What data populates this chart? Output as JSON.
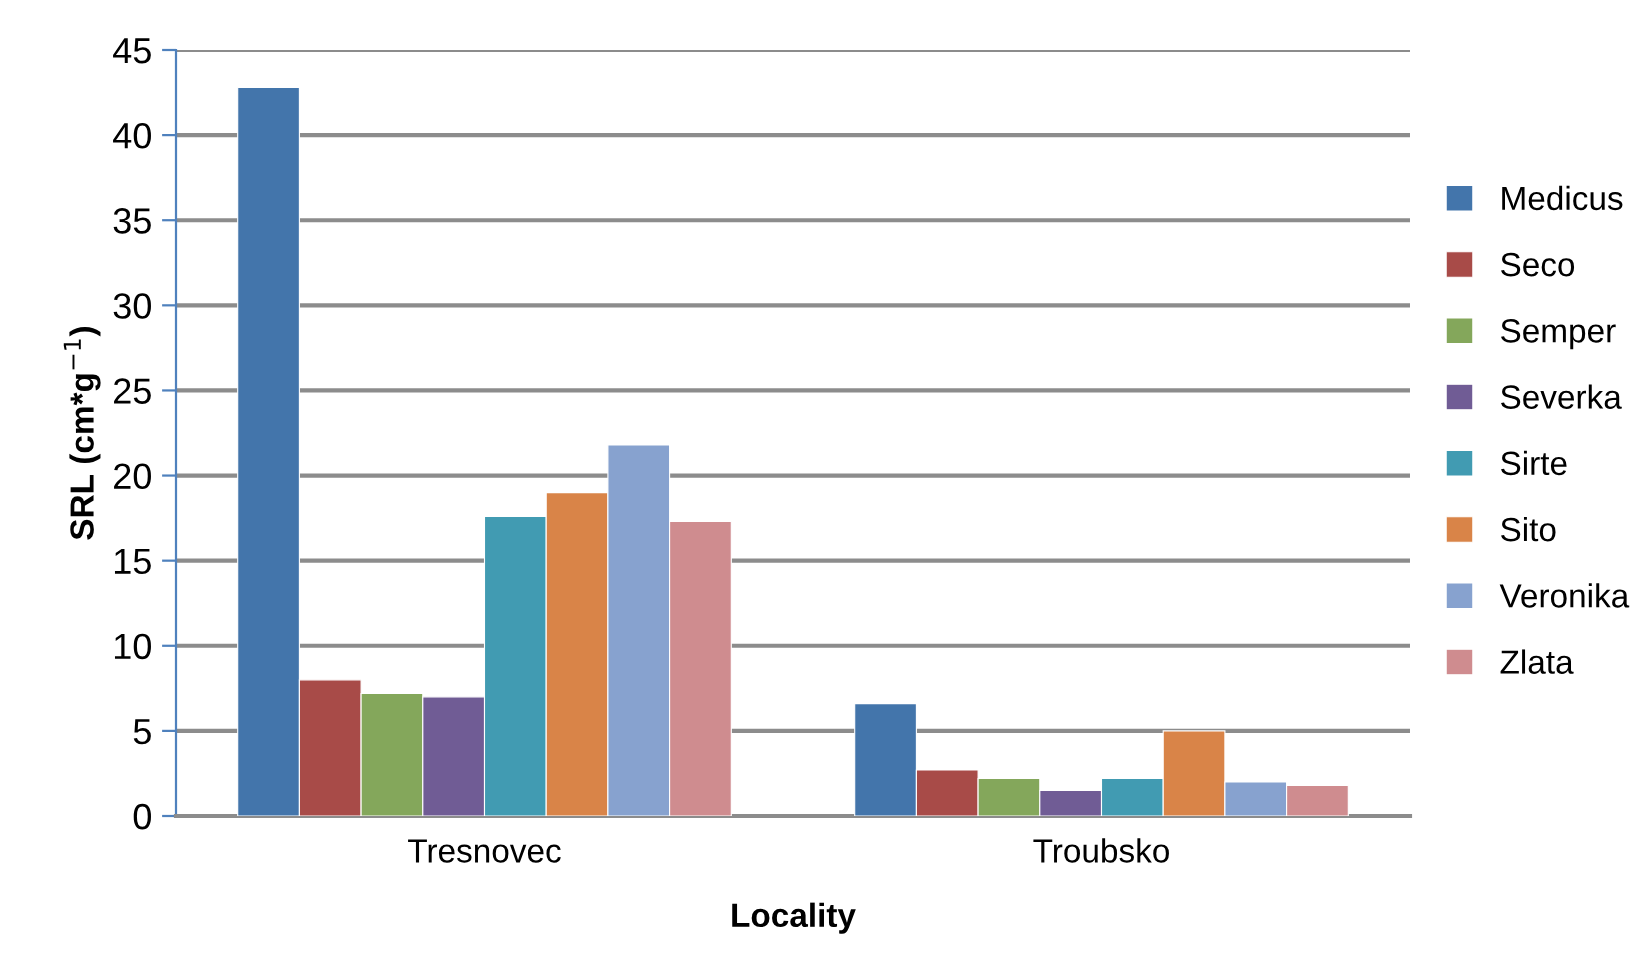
{
  "chart_data": {
    "type": "bar",
    "xlabel": "Locality",
    "ylabel": "SRL (cm*g$^{−1}$)",
    "categories": [
      "Tresnovec",
      "Troubsko"
    ],
    "series": [
      {
        "name": "Medicus",
        "color": "#4375ab",
        "values": [
          42.8,
          6.6
        ]
      },
      {
        "name": "Seco",
        "color": "#a84b48",
        "values": [
          8.0,
          2.7
        ]
      },
      {
        "name": "Semper",
        "color": "#84a75b",
        "values": [
          7.2,
          2.2
        ]
      },
      {
        "name": "Severka",
        "color": "#705c95",
        "values": [
          7.0,
          1.5
        ]
      },
      {
        "name": "Sirte",
        "color": "#419bb2",
        "values": [
          17.6,
          2.2
        ]
      },
      {
        "name": "Sito",
        "color": "#d98448",
        "values": [
          19.0,
          5.0
        ]
      },
      {
        "name": "Veronika",
        "color": "#87a2cf",
        "values": [
          21.8,
          2.0
        ]
      },
      {
        "name": "Zlata",
        "color": "#cf8c8f",
        "values": [
          17.3,
          1.8
        ]
      }
    ],
    "ylim": [
      0,
      45
    ],
    "yticks": [
      0,
      5,
      10,
      15,
      20,
      25,
      30,
      35,
      40,
      45
    ],
    "grid": "y",
    "legend": "right"
  }
}
